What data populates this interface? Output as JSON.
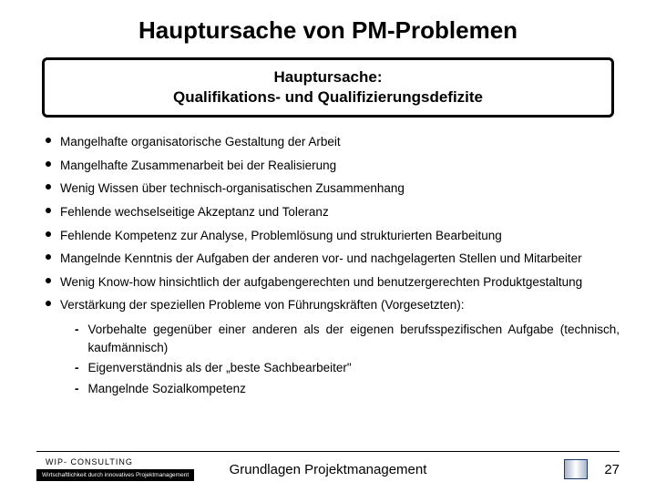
{
  "title": "Hauptursache von PM-Problemen",
  "box": {
    "line1": "Hauptursache:",
    "line2": "Qualifikations- und Qualifizierungsdefizite"
  },
  "bullets": [
    {
      "text": "Mangelhafte organisatorische Gestaltung der Arbeit",
      "justified": false
    },
    {
      "text": "Mangelhafte Zusammenarbeit bei der Realisierung",
      "justified": false
    },
    {
      "text": "Wenig Wissen über technisch-organisatischen Zusammenhang",
      "justified": false
    },
    {
      "text": "Fehlende wechselseitige Akzeptanz und Toleranz",
      "justified": false
    },
    {
      "text": "Fehlende Kompetenz zur Analyse, Problemlösung und strukturierten Bearbeitung",
      "justified": false
    },
    {
      "text": "Mangelnde Kenntnis der Aufgaben der anderen vor- und nachgelagerten Stellen und Mitarbeiter",
      "justified": false
    },
    {
      "text": "Wenig Know-how hinsichtlich der aufgabengerechten und benutzergerechten Produktgestaltung",
      "justified": true
    },
    {
      "text": "Verstärkung der speziellen Probleme von Führungskräften (Vorgesetzten):",
      "justified": false
    }
  ],
  "subbullets": [
    {
      "text": "Vorbehalte gegenüber einer anderen als der eigenen berufsspezifischen Aufgabe (technisch, kaufmännisch)",
      "justified": true
    },
    {
      "text": "Eigenverständnis als der „beste Sachbearbeiter\"",
      "justified": false
    },
    {
      "text": "Mangelnde Sozialkompetenz",
      "justified": false
    }
  ],
  "footer": {
    "consulting": "WIP- CONSULTING",
    "tagline": "Wirtschaftlichkeit durch innovatives Projektmanagement",
    "center": "Grundlagen Projektmanagement",
    "page": "27"
  }
}
